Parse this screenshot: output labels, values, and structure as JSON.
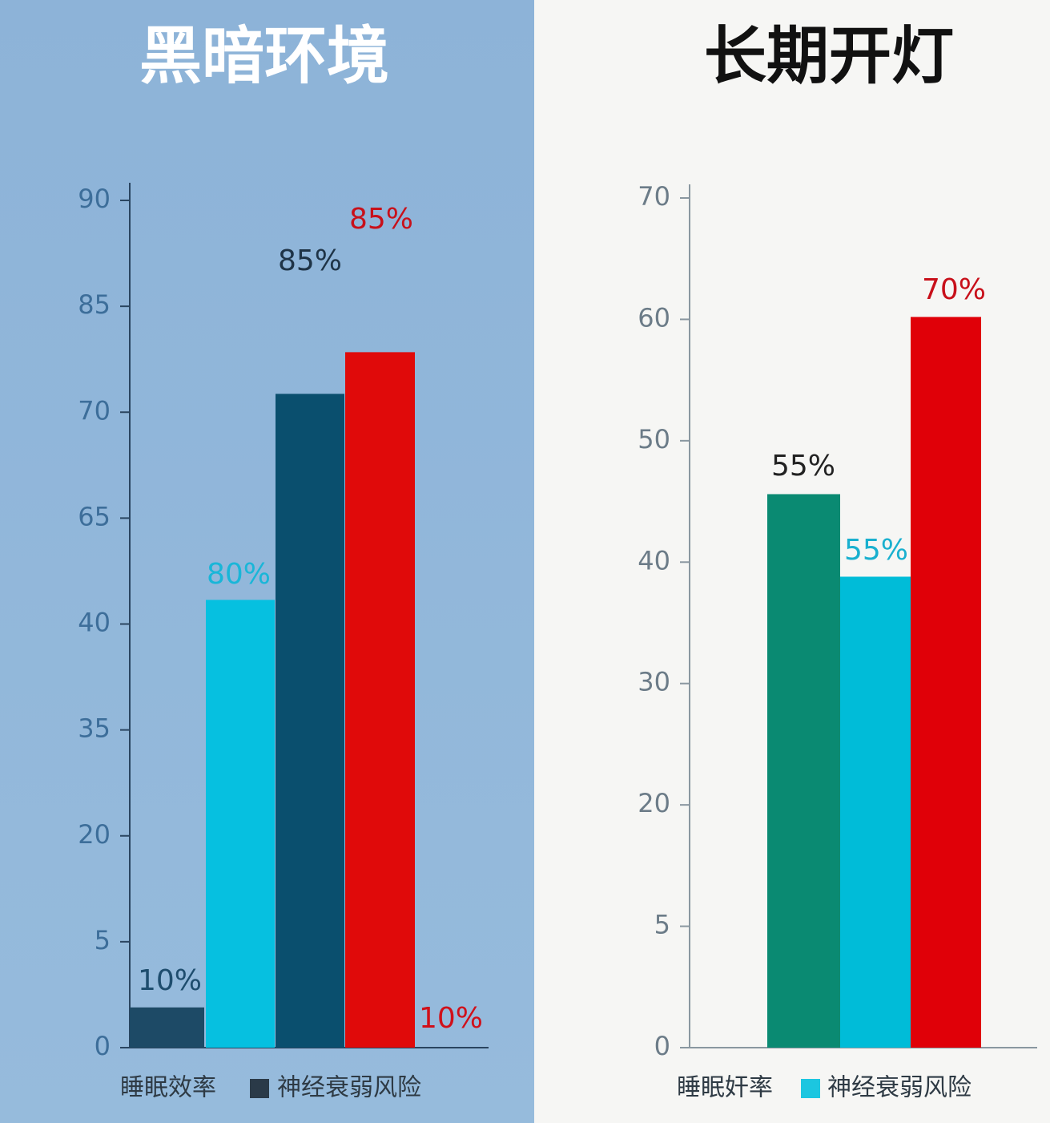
{
  "chart_data": [
    {
      "type": "bar",
      "title": "黑暗环境",
      "categories": [
        null,
        null,
        null,
        null
      ],
      "values": [
        1.9,
        45.7,
        72.6,
        78.5
      ],
      "colors": [
        "#1d4a66",
        "#06c0e0",
        "#0a4f6e",
        "#e00a0a"
      ],
      "ylim": [
        0,
        90
      ],
      "yticks": [
        0,
        5,
        20,
        35,
        40,
        65,
        70,
        85,
        90
      ],
      "scale": "tick-piecewise",
      "annotations": [
        {
          "text": "10%",
          "color": "#1e4d6e"
        },
        {
          "text": "80%",
          "color": "#19b6d8"
        },
        {
          "text": "85%",
          "color": "#1f3447"
        },
        {
          "text": "85%",
          "color": "#c8101a"
        },
        {
          "text": "10%",
          "color": "#d0101a"
        }
      ],
      "legend": [
        {
          "name": "睡眠效率"
        },
        {
          "name": "神经衰弱风险",
          "color": "#2a3a48"
        }
      ]
    },
    {
      "type": "bar",
      "title": "长期开灯",
      "categories": [
        null,
        null,
        null
      ],
      "values": [
        45.6,
        38.8,
        60.2
      ],
      "colors": [
        "#0a8a72",
        "#00bcd8",
        "#e00008"
      ],
      "ylim": [
        0,
        70
      ],
      "yticks": [
        0,
        5,
        20,
        30,
        40,
        50,
        60,
        70
      ],
      "scale": "tick-piecewise",
      "annotations": [
        {
          "text": "55%",
          "color": "#222222"
        },
        {
          "text": "55%",
          "color": "#19b0cf"
        },
        {
          "text": "70%",
          "color": "#c8101a"
        }
      ],
      "legend": [
        {
          "name": "睡眠奸率"
        },
        {
          "name": "神经衰弱风险",
          "color": "#1cc6e0"
        }
      ]
    }
  ]
}
